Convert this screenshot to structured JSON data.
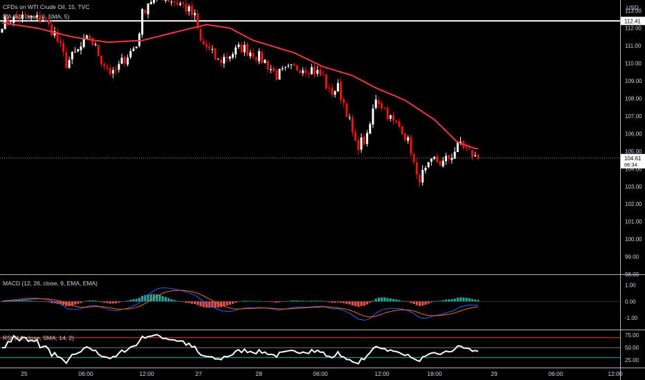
{
  "header": {
    "symbol_line": "CFDs on WTI Crude Oil, 15, TVC",
    "ma_line": "MA (50, close, 0, SMA, 5)",
    "macd_line": "MACD (12, 26, close, 9, EMA, EMA)",
    "rsi_line": "RSI (14, close, SMA, 14, 2)"
  },
  "price_axis": {
    "currency": "USD",
    "ticks": [
      "113.00",
      "112.00",
      "111.00",
      "110.00",
      "109.00",
      "108.00",
      "107.00",
      "106.00",
      "105.00",
      "104.00",
      "103.00",
      "102.00",
      "101.00",
      "100.00",
      "99.00",
      "98.00"
    ],
    "hline_label": "112.41",
    "last_price_label": "104.61",
    "countdown_label": "06:34"
  },
  "macd_axis": {
    "ticks": [
      "1.00",
      "0.00",
      "-1.00"
    ]
  },
  "rsi_axis": {
    "ticks": [
      "75.00",
      "50.00",
      "25.00"
    ]
  },
  "time_axis": {
    "labels": [
      "25",
      "06:00",
      "12:00",
      "27",
      "28",
      "06:00",
      "12:00",
      "18:00",
      "29",
      "06:00",
      "12:00"
    ]
  },
  "colors": {
    "background": "#000000",
    "up": "#ffffff",
    "down": "#ef1111",
    "ma": "#f23645",
    "hline": "#ffffff",
    "macd": "#2962ff",
    "signal": "#ff6d00",
    "hist_up": "#26a69a",
    "hist_down": "#ef5350",
    "rsi": "#ffffff",
    "rsi_upper": "#f23645",
    "rsi_mid": "#787b86",
    "rsi_lower": "#22ab94",
    "text": "#d1d4dc",
    "separator": "#b2b5be"
  },
  "chart_data": {
    "type": "candlestick",
    "title": "CFDs on WTI Crude Oil, 15, TVC",
    "ylabel": "USD",
    "ylim": [
      98,
      113.6
    ],
    "hline": 112.41,
    "last_price": 104.61,
    "ma_keypoints": [
      [
        0,
        112.3
      ],
      [
        12,
        112.0
      ],
      [
        24,
        111.5
      ],
      [
        36,
        111.2
      ],
      [
        48,
        111.3
      ],
      [
        60,
        111.8
      ],
      [
        70,
        112.2
      ],
      [
        78,
        112.0
      ],
      [
        86,
        111.3
      ],
      [
        100,
        110.6
      ],
      [
        110,
        109.8
      ],
      [
        120,
        109.3
      ],
      [
        128,
        108.6
      ],
      [
        138,
        107.9
      ],
      [
        148,
        106.8
      ],
      [
        156,
        105.5
      ],
      [
        162,
        105.15
      ]
    ],
    "close_keypoints": [
      [
        0,
        112.3
      ],
      [
        6,
        112.6
      ],
      [
        14,
        112.5
      ],
      [
        18,
        111.7
      ],
      [
        22,
        110.0
      ],
      [
        26,
        110.7
      ],
      [
        30,
        111.5
      ],
      [
        34,
        110.2
      ],
      [
        38,
        109.3
      ],
      [
        42,
        110.3
      ],
      [
        46,
        111.0
      ],
      [
        48,
        112.8
      ],
      [
        50,
        113.5
      ],
      [
        54,
        113.9
      ],
      [
        58,
        113.6
      ],
      [
        62,
        113.3
      ],
      [
        66,
        112.6
      ],
      [
        68,
        111.2
      ],
      [
        70,
        110.9
      ],
      [
        74,
        110.1
      ],
      [
        78,
        110.5
      ],
      [
        82,
        110.9
      ],
      [
        86,
        110.6
      ],
      [
        90,
        110.1
      ],
      [
        94,
        109.3
      ],
      [
        98,
        109.6
      ],
      [
        102,
        109.8
      ],
      [
        106,
        109.7
      ],
      [
        110,
        109.2
      ],
      [
        112,
        108.3
      ],
      [
        115,
        108.6
      ],
      [
        118,
        107.3
      ],
      [
        121,
        105.3
      ],
      [
        125,
        105.7
      ],
      [
        128,
        108.1
      ],
      [
        131,
        107.4
      ],
      [
        134,
        106.6
      ],
      [
        137,
        106.3
      ],
      [
        140,
        105.1
      ],
      [
        142,
        103.4
      ],
      [
        145,
        103.8
      ],
      [
        148,
        104.5
      ],
      [
        151,
        104.3
      ],
      [
        154,
        104.8
      ],
      [
        157,
        105.5
      ],
      [
        159,
        105.1
      ],
      [
        162,
        104.61
      ]
    ],
    "macd_ylim": [
      -1.7,
      1.6
    ],
    "rsi_ylim": [
      10,
      85
    ],
    "rsi_levels": [
      70,
      50,
      30
    ]
  }
}
